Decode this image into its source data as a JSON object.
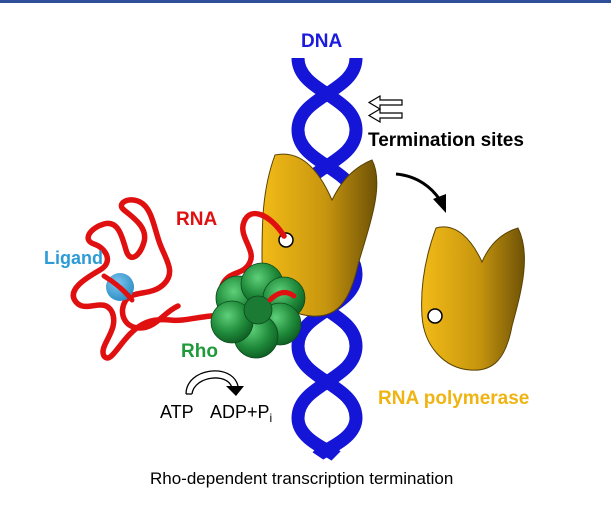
{
  "labels": {
    "dna": "DNA",
    "termination_sites": "Termination sites",
    "rna": "RNA",
    "ligand": "Ligand",
    "rho": "Rho",
    "rna_polymerase": "RNA polymerase",
    "atp": "ATP",
    "adp_pi": "ADP+P",
    "adp_pi_subscript": "i",
    "caption": "Rho-dependent transcription termination"
  },
  "colors": {
    "top_rule": "#2f4f9a",
    "dna": "#1515d8",
    "rna": "#e01010",
    "ligand": "#3aa0d8",
    "rho": "#1f8a3a",
    "rho_light": "#4fc06a",
    "polymerase_light": "#f2bb18",
    "polymerase_dark": "#6e5206",
    "dna_label": "#1a1ae0",
    "rna_label": "#e01010",
    "ligand_label": "#2c9bd6",
    "rho_label": "#1f9a3a",
    "polymerase_label": "#efb412",
    "text": "#000000"
  },
  "icons": {
    "termination_arrows": "double-outline-arrow-left-icon",
    "curved_arrow": "curved-arrow-icon",
    "atp_hydrolysis_arrow": "circular-arrow-icon"
  }
}
